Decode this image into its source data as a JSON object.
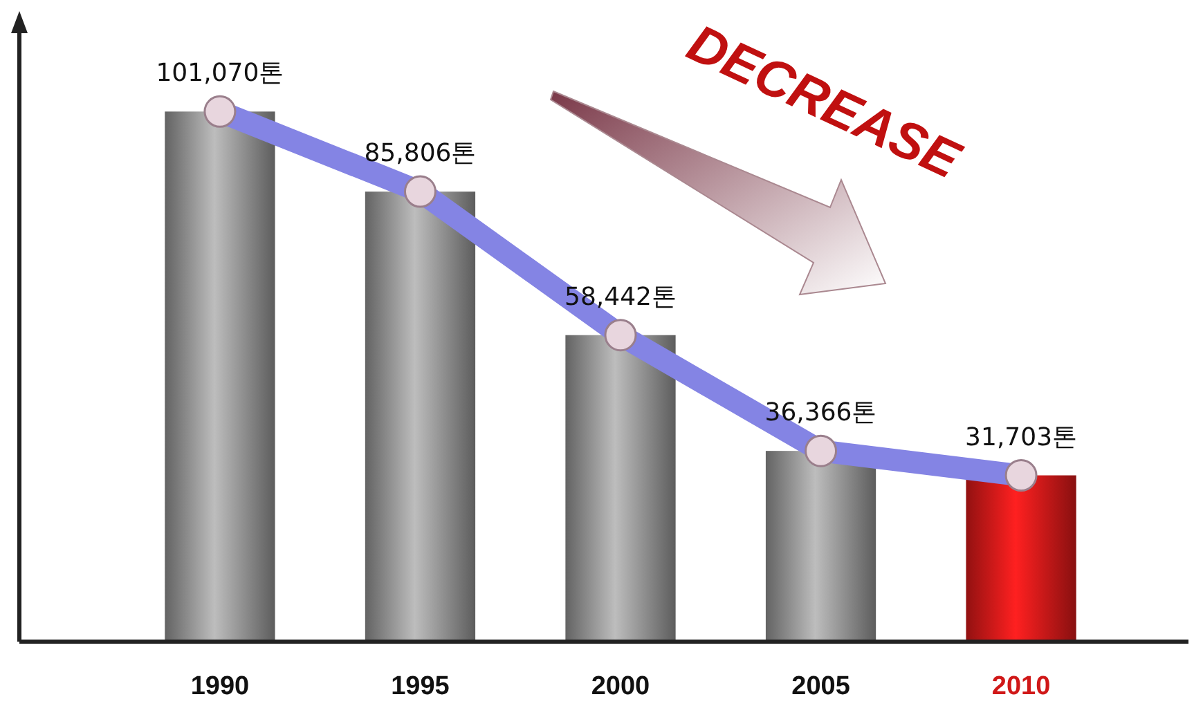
{
  "chart_data": {
    "type": "bar",
    "categories": [
      "1990",
      "1995",
      "2000",
      "2005",
      "2010"
    ],
    "series": [
      {
        "colors": [
          "#8e8e8e",
          "#8e8e8e",
          "#8e8e8e",
          "#8e8e8e",
          "#d01818"
        ],
        "values": [
          101070,
          85806,
          58442,
          36366,
          31703
        ]
      },
      {
        "type": "line",
        "color": "#8484e4",
        "values": [
          101070,
          85806,
          58442,
          36366,
          31703
        ],
        "value_labels": [
          "101,070톤",
          "85,806톤",
          "58,442톤",
          "36,366톤",
          "31,703톤"
        ]
      }
    ],
    "annotations": [
      "DECREASE"
    ],
    "marker": "circle",
    "tick_labels": "x"
  }
}
